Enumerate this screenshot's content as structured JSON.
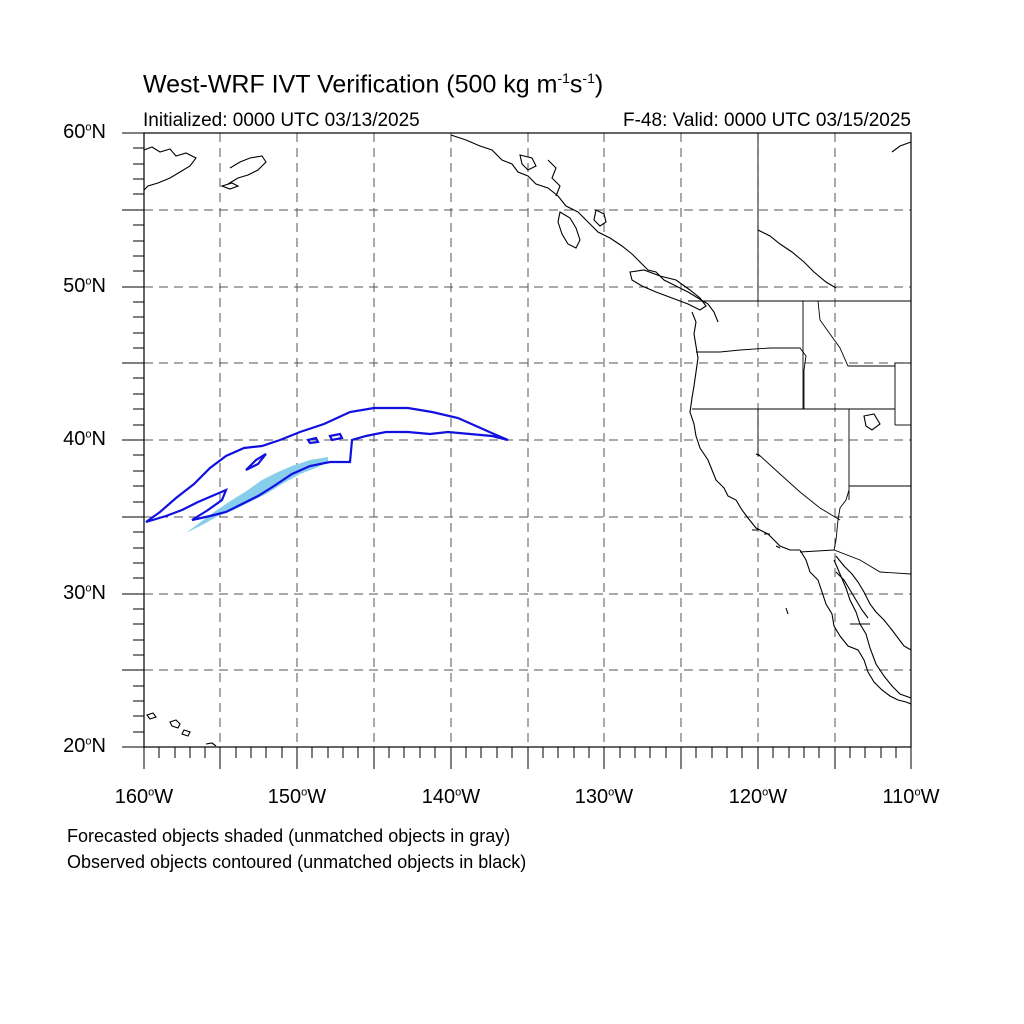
{
  "header": {
    "title_main": "West-WRF IVT Verification (500 kg m",
    "title_exp1": "-1",
    "title_mid": "s",
    "title_exp2": "-1",
    "title_end": ")",
    "initialized": "Initialized: 0000 UTC 03/13/2025",
    "valid": "F-48: Valid: 0000 UTC 03/15/2025"
  },
  "axes": {
    "lat_labels": [
      {
        "num": "60",
        "hem": "N"
      },
      {
        "num": "50",
        "hem": "N"
      },
      {
        "num": "40",
        "hem": "N"
      },
      {
        "num": "30",
        "hem": "N"
      },
      {
        "num": "20",
        "hem": "N"
      }
    ],
    "lon_labels": [
      {
        "num": "160",
        "hem": "W"
      },
      {
        "num": "150",
        "hem": "W"
      },
      {
        "num": "140",
        "hem": "W"
      },
      {
        "num": "130",
        "hem": "W"
      },
      {
        "num": "120",
        "hem": "W"
      },
      {
        "num": "110",
        "hem": "W"
      }
    ],
    "degree_symbol": "o"
  },
  "legend": {
    "forecast_note": "Forecasted objects shaded (unmatched objects in gray)",
    "observed_note": "Observed objects contoured (unmatched objects in black)"
  },
  "colors": {
    "forecast_fill": "#87ceeb",
    "observed_contour": "#1010e0",
    "coastline": "#000000",
    "grid": "#555555"
  }
}
